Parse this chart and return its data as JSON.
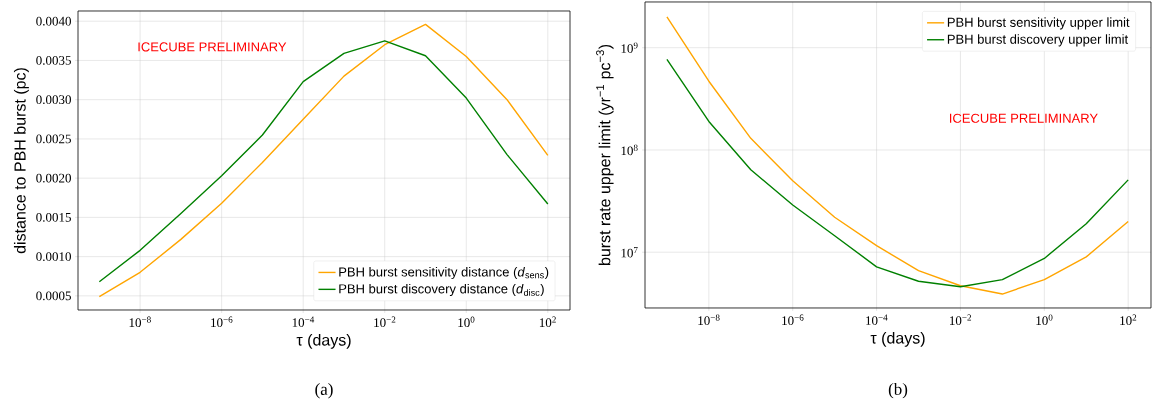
{
  "chart_data": [
    {
      "type": "line",
      "xlabel": "τ (days)",
      "ylabel": "distance to PBH burst (pc)",
      "annotations": [
        "ICECUBE PRELIMINARY",
        "(a)"
      ],
      "x": [
        1e-09,
        1e-08,
        1e-07,
        1e-06,
        1e-05,
        0.0001,
        0.001,
        0.01,
        0.1,
        1,
        10,
        100
      ],
      "series": [
        {
          "name": "PBH burst sensitivity distance (*d*$_{sens}$)",
          "color": "#ffa500",
          "values": [
            0.00049,
            0.0008,
            0.00122,
            0.00168,
            0.0022,
            0.00275,
            0.0033,
            0.0037,
            0.00396,
            0.00355,
            0.003,
            0.00229
          ]
        },
        {
          "name": "PBH burst discovery distance (*d*$_{disc}$)",
          "color": "#008000",
          "values": [
            0.00068,
            0.00108,
            0.00155,
            0.00203,
            0.00255,
            0.00323,
            0.00359,
            0.00375,
            0.00356,
            0.00302,
            0.0023,
            0.00167
          ]
        }
      ],
      "log": "x",
      "xlim": [
        3e-10,
        350
      ],
      "ylim": [
        0.00032,
        0.00413
      ],
      "xticks": [
        {
          "value": 1e-08,
          "label": "10$^{−8}$"
        },
        {
          "value": 1e-06,
          "label": "10$^{−6}$"
        },
        {
          "value": 0.0001,
          "label": "10$^{−4}$"
        },
        {
          "value": 0.01,
          "label": "10$^{−2}$"
        },
        {
          "value": 1,
          "label": "10$^{0}$"
        },
        {
          "value": 100,
          "label": "10$^{2}$"
        }
      ],
      "yticks": [
        {
          "value": 0.0005,
          "label": "0.0005"
        },
        {
          "value": 0.001,
          "label": "0.0010"
        },
        {
          "value": 0.0015,
          "label": "0.0015"
        },
        {
          "value": 0.002,
          "label": "0.0020"
        },
        {
          "value": 0.0025,
          "label": "0.0025"
        },
        {
          "value": 0.003,
          "label": "0.0030"
        },
        {
          "value": 0.0035,
          "label": "0.0035"
        },
        {
          "value": 0.004,
          "label": "0.0040"
        }
      ],
      "grid": true,
      "legend": "bottom right"
    },
    {
      "type": "line",
      "xlabel": "τ (days)",
      "ylabel": "burst rate upper limit (yr$^{−1}$ pc$^{−3}$)",
      "annotations": [
        "ICECUBE PRELIMINARY",
        "(b)"
      ],
      "x": [
        1e-09,
        1e-08,
        1e-07,
        1e-06,
        1e-05,
        0.0001,
        0.001,
        0.01,
        0.1,
        1,
        10,
        100
      ],
      "series": [
        {
          "name": "PBH burst sensitivity upper limit",
          "color": "#ffa500",
          "values": [
            2000000000.0,
            470000000.0,
            130000000.0,
            50000000.0,
            22000000.0,
            11600000.0,
            6600000.0,
            4700000.0,
            3900000.0,
            5400000.0,
            9000000.0,
            20000000.0
          ]
        },
        {
          "name": "PBH burst discovery upper limit",
          "color": "#008000",
          "values": [
            770000000.0,
            190000000.0,
            64000000.0,
            29000000.0,
            14500000.0,
            7200000.0,
            5200000.0,
            4600000.0,
            5400000.0,
            8700000.0,
            19000000.0,
            51000000.0
          ]
        }
      ],
      "log": "xy",
      "xlim": [
        3e-10,
        350
      ],
      "ylim": [
        2850000.0,
        2800000000.0
      ],
      "xticks": [
        {
          "value": 1e-08,
          "label": "10$^{−8}$"
        },
        {
          "value": 1e-06,
          "label": "10$^{−6}$"
        },
        {
          "value": 0.0001,
          "label": "10$^{−4}$"
        },
        {
          "value": 0.01,
          "label": "10$^{−2}$"
        },
        {
          "value": 1,
          "label": "10$^{0}$"
        },
        {
          "value": 100,
          "label": "10$^{2}$"
        }
      ],
      "yticks": [
        {
          "value": 10000000.0,
          "label": "10$^{7}$"
        },
        {
          "value": 100000000.0,
          "label": "10$^{8}$"
        },
        {
          "value": 1000000000.0,
          "label": "10$^{9}$"
        }
      ],
      "grid": true,
      "legend": "top right"
    }
  ]
}
